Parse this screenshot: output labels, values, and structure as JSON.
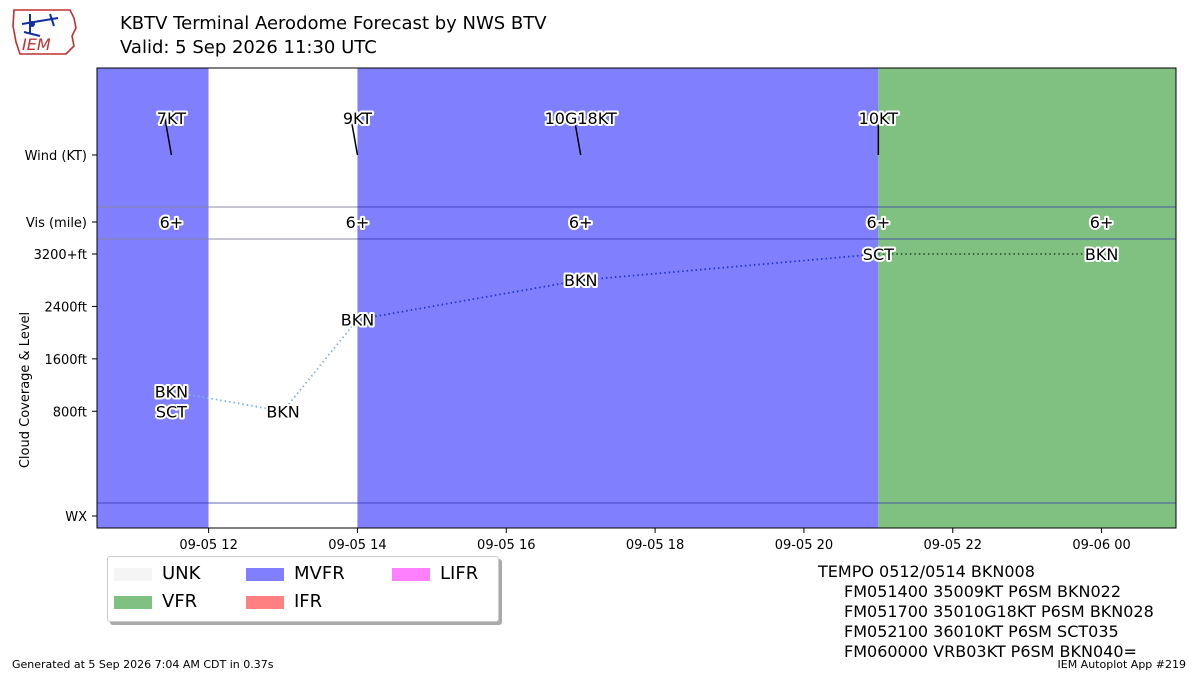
{
  "header": {
    "title": "KBTV Terminal Aerodome Forecast by NWS BTV",
    "valid": "Valid: 5 Sep 2026 11:30 UTC",
    "logo_text": "IEM"
  },
  "footer": {
    "generated": "Generated at 5 Sep 2026 7:04 AM CDT in 0.37s",
    "app": "IEM Autoplot App #219"
  },
  "legend": [
    {
      "label": "UNK",
      "color": "#f5f5f5"
    },
    {
      "label": "MVFR",
      "color": "#8080ff"
    },
    {
      "label": "LIFR",
      "color": "#ff80ff"
    },
    {
      "label": "VFR",
      "color": "#80c080"
    },
    {
      "label": "IFR",
      "color": "#ff8080"
    }
  ],
  "taf_text": [
    "TEMPO 0512/0514 BKN008",
    "FM051400 35009KT P6SM BKN022",
    "FM051700 35010G18KT P6SM BKN028",
    "FM052100 36010KT P6SM SCT035",
    "FM060000 VRB03KT P6SM BKN040="
  ],
  "chart_data": {
    "type": "timeline",
    "x_range": [
      "2026-09-05 10:30",
      "2026-09-06 01:00"
    ],
    "x_ticks": [
      "09-05 12",
      "09-05 14",
      "09-05 16",
      "09-05 18",
      "09-05 20",
      "09-05 22",
      "09-06 00"
    ],
    "y_tick_labels": [
      "Wind (KT)",
      "Vis (mile)",
      "3200+ft",
      "2400ft",
      "1600ft",
      "800ft",
      "WX"
    ],
    "ylabel": "Cloud Coverage & Level",
    "ylim_cloud_ft": [
      -600,
      3200
    ],
    "flight_category_bands": [
      {
        "from": "2026-09-05 10:30",
        "to": "2026-09-05 12:00",
        "category": "MVFR"
      },
      {
        "from": "2026-09-05 12:00",
        "to": "2026-09-05 14:00",
        "category": "none"
      },
      {
        "from": "2026-09-05 14:00",
        "to": "2026-09-05 21:00",
        "category": "MVFR"
      },
      {
        "from": "2026-09-05 21:00",
        "to": "2026-09-06 01:00",
        "category": "VFR"
      }
    ],
    "wind": [
      {
        "time": "2026-09-05 11:30",
        "label": "7KT",
        "dir": 350
      },
      {
        "time": "2026-09-05 14:00",
        "label": "9KT",
        "dir": 350
      },
      {
        "time": "2026-09-05 17:00",
        "label": "10G18KT",
        "dir": 350
      },
      {
        "time": "2026-09-05 21:00",
        "label": "10KT",
        "dir": 360
      }
    ],
    "visibility": [
      {
        "time": "2026-09-05 11:30",
        "label": "6+"
      },
      {
        "time": "2026-09-05 14:00",
        "label": "6+"
      },
      {
        "time": "2026-09-05 17:00",
        "label": "6+"
      },
      {
        "time": "2026-09-05 21:00",
        "label": "6+"
      },
      {
        "time": "2026-09-06 00:00",
        "label": "6+"
      }
    ],
    "clouds": [
      {
        "time": "2026-09-05 11:30",
        "level_ft": 1100,
        "cover": "BKN"
      },
      {
        "time": "2026-09-05 11:30",
        "level_ft": 800,
        "cover": "SCT"
      },
      {
        "time": "2026-09-05 13:00",
        "level_ft": 800,
        "cover": "BKN"
      },
      {
        "time": "2026-09-05 14:00",
        "level_ft": 2200,
        "cover": "BKN"
      },
      {
        "time": "2026-09-05 17:00",
        "level_ft": 2800,
        "cover": "BKN"
      },
      {
        "time": "2026-09-05 21:00",
        "level_ft": 3200,
        "cover": "SCT"
      },
      {
        "time": "2026-09-06 00:00",
        "level_ft": 3200,
        "cover": "BKN"
      }
    ],
    "cloud_lines": [
      {
        "points": [
          [
            "2026-09-05 11:30",
            1100
          ],
          [
            "2026-09-05 13:00",
            800
          ]
        ],
        "color": "#80b0e0"
      },
      {
        "points": [
          [
            "2026-09-05 13:00",
            800
          ],
          [
            "2026-09-05 14:00",
            2200
          ]
        ],
        "color": "#80b0e0"
      },
      {
        "points": [
          [
            "2026-09-05 14:00",
            2200
          ],
          [
            "2026-09-05 17:00",
            2800
          ],
          [
            "2026-09-05 21:00",
            3200
          ]
        ],
        "color": "#2233cc"
      },
      {
        "points": [
          [
            "2026-09-05 21:00",
            3200
          ],
          [
            "2026-09-06 00:00",
            3200
          ]
        ],
        "color": "#335533"
      }
    ]
  }
}
